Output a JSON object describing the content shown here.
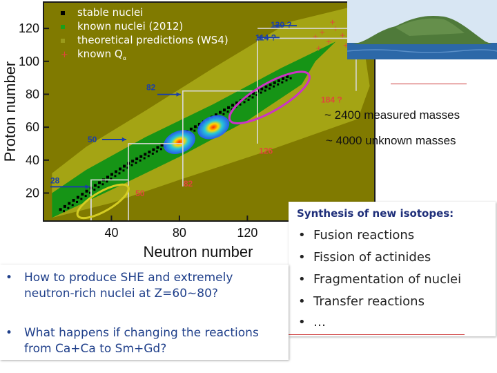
{
  "chart_data": {
    "type": "scatter",
    "xlabel": "Neutron number",
    "ylabel": "Proton number",
    "xlim": [
      0,
      195
    ],
    "ylim": [
      3,
      136
    ],
    "x_ticks": [
      "40",
      "80",
      "120"
    ],
    "y_ticks": [
      "20",
      "40",
      "60",
      "80",
      "100",
      "120"
    ],
    "legend": {
      "placement": "top-left",
      "entries": [
        {
          "label": "stable nuclei",
          "color": "#000000"
        },
        {
          "label": "known nuclei (2012)",
          "color": "#1f8f1f"
        },
        {
          "label": "theoretical predictions (WS4)",
          "color": "#8a8a1a"
        },
        {
          "label": "known Q",
          "subscript": "α",
          "color": "#e0463c"
        }
      ]
    },
    "region_colors": {
      "background": "#807a00",
      "predicted": "#a4a414",
      "known": "#169416",
      "stable": "#000000",
      "known_q_alpha": "#e0463c"
    },
    "magic_numbers": {
      "proton": [
        {
          "label": "28",
          "color": "#1a3fa8"
        },
        {
          "label": "50",
          "color": "#1a3fa8"
        },
        {
          "label": "82",
          "color": "#1a3fa8"
        },
        {
          "label": "114 ?",
          "color": "#1a3fa8"
        },
        {
          "label": "120 ?",
          "color": "#1a3fa8"
        }
      ],
      "neutron": [
        {
          "label": "50",
          "color": "#e0463c"
        },
        {
          "label": "82",
          "color": "#e0463c"
        },
        {
          "label": "126",
          "color": "#e0463c"
        },
        {
          "label": "184 ?",
          "color": "#e0463c"
        }
      ]
    },
    "magic_lines": {
      "proton": [
        28,
        50,
        82,
        114,
        120
      ],
      "neutron": [
        28,
        50,
        82,
        126,
        184
      ]
    },
    "stable_valley": [
      [
        10,
        10
      ],
      [
        28,
        23
      ],
      [
        50,
        38
      ],
      [
        82,
        56
      ],
      [
        126,
        82
      ],
      [
        146,
        92
      ]
    ],
    "known_band": {
      "lower": [
        [
          5,
          5
        ],
        [
          40,
          22
        ],
        [
          80,
          42
        ],
        [
          120,
          64
        ],
        [
          152,
          86
        ],
        [
          160,
          100
        ]
      ],
      "upper": [
        [
          5,
          20
        ],
        [
          25,
          34
        ],
        [
          60,
          54
        ],
        [
          100,
          74
        ],
        [
          140,
          96
        ],
        [
          172,
          112
        ]
      ]
    },
    "predicted_band": {
      "lower": [
        [
          5,
          5
        ],
        [
          40,
          14
        ],
        [
          80,
          28
        ],
        [
          130,
          45
        ],
        [
          185,
          65
        ],
        [
          192,
          85
        ]
      ],
      "upper": [
        [
          5,
          32
        ],
        [
          25,
          48
        ],
        [
          60,
          70
        ],
        [
          100,
          96
        ],
        [
          145,
          124
        ],
        [
          185,
          134
        ]
      ]
    },
    "hot_spots": [
      {
        "label": "",
        "N": 80,
        "Z": 51
      },
      {
        "label": "",
        "N": 100,
        "Z": 60
      }
    ],
    "highlight_ellipses": [
      {
        "N": 35,
        "Z": 15,
        "color": "#d4cc22"
      },
      {
        "N": 133,
        "Z": 78,
        "color": "#cc33c6"
      }
    ],
    "known_q_alpha_points": [
      [
        160,
        115
      ],
      [
        164,
        118
      ],
      [
        168,
        112
      ],
      [
        172,
        120
      ],
      [
        176,
        116
      ],
      [
        180,
        122
      ],
      [
        184,
        118
      ],
      [
        170,
        124
      ],
      [
        178,
        110
      ],
      [
        186,
        126
      ],
      [
        162,
        108
      ]
    ],
    "annotations": [
      "~ 2400 measured masses",
      "~ 4000 unknown masses"
    ]
  },
  "synthesis": {
    "title": "Synthesis of new isotopes:",
    "bullet": "•",
    "items": [
      "Fusion reactions",
      "Fission of actinides",
      "Fragmentation of nuclei",
      "Transfer reactions",
      "…"
    ]
  },
  "questions": {
    "bullet": "•",
    "items": [
      "How to produce SHE and extremely neutron-rich nuclei at Z=60~80?",
      "What happens if changing the reactions from Ca+Ca to Sm+Gd?"
    ]
  },
  "island": {
    "alt": "island photo",
    "sea_color": "#2c68a8",
    "sky_color": "#d8e6f3",
    "land_color": "#4f7a3a"
  }
}
